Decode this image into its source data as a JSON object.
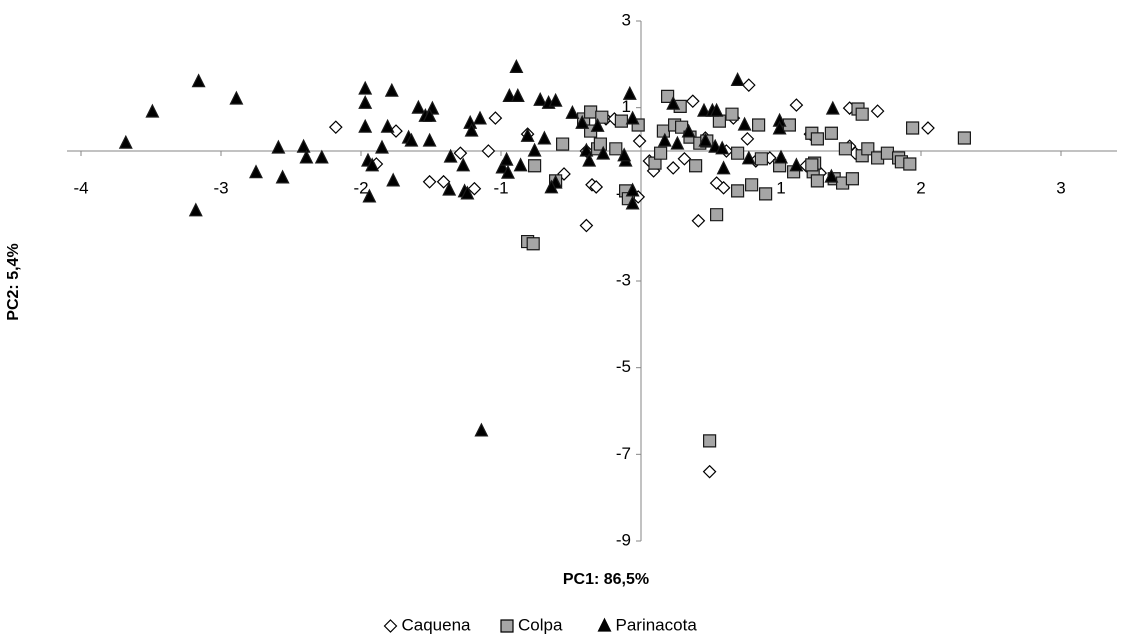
{
  "chart_data": {
    "type": "scatter",
    "xlabel": "PC1: 86,5%",
    "ylabel": "PC2: 5,4%",
    "xlim": [
      -4.1,
      3.4
    ],
    "ylim": [
      -9,
      3
    ],
    "xticks": [
      -4,
      -3,
      -2,
      -1,
      1,
      2,
      3
    ],
    "yticks": [
      3,
      1,
      -1,
      -3,
      -5,
      -7,
      -9
    ],
    "legend": "bottom",
    "series": [
      {
        "name": "Caquena",
        "marker": "diamond",
        "color": "#ffffff",
        "x": [
          -2.18,
          -1.89,
          -1.75,
          -1.51,
          -1.41,
          -1.29,
          -1.19,
          -1.09,
          -1.04,
          -0.81,
          -0.55,
          -0.39,
          -0.35,
          -0.32,
          -0.39,
          -0.25,
          -0.19,
          -0.02,
          0.06,
          0.09,
          0.23,
          0.31,
          0.37,
          0.41,
          0.46,
          0.49,
          0.54,
          0.59,
          0.61,
          0.66,
          0.77,
          0.76,
          0.82,
          0.92,
          1.11,
          1.18,
          1.21,
          1.49,
          1.49,
          1.53,
          2.05,
          1.69,
          1.28,
          -0.01
        ],
        "values": [
          0.55,
          -0.3,
          0.46,
          -0.71,
          -0.71,
          -0.05,
          -0.87,
          0,
          0.76,
          0.39,
          -0.53,
          -1.72,
          -0.78,
          -0.83,
          0,
          0.74,
          0.74,
          -1.06,
          -0.23,
          -0.46,
          -0.39,
          -0.18,
          1.15,
          -1.61,
          0.3,
          -7.4,
          -0.74,
          -0.85,
          0,
          0.76,
          1.52,
          0.28,
          -0.23,
          -0.16,
          1.06,
          -0.34,
          0.39,
          0.11,
          0.99,
          -0.05,
          0.53,
          0.92,
          -0.51,
          0.23
        ]
      },
      {
        "name": "Colpa",
        "marker": "square",
        "color": "#a6a6a6",
        "x": [
          -0.81,
          -0.77,
          -0.76,
          -0.61,
          -0.56,
          -0.41,
          -0.36,
          -0.36,
          -0.31,
          -0.29,
          -0.28,
          -0.14,
          -0.11,
          -0.09,
          -0.02,
          0.1,
          0.16,
          0.19,
          0.24,
          0.28,
          0.29,
          0.35,
          0.39,
          0.42,
          0.47,
          0.49,
          0.54,
          0.56,
          0.65,
          0.69,
          0.69,
          0.79,
          0.89,
          0.86,
          0.84,
          0.99,
          1.06,
          1.09,
          1.23,
          1.24,
          1.26,
          1.22,
          1.26,
          1.36,
          1.38,
          1.44,
          1.46,
          1.51,
          1.55,
          1.58,
          1.58,
          1.62,
          1.69,
          1.76,
          1.84,
          1.86,
          1.94,
          1.92,
          2.31,
          1.22,
          0.14,
          -0.18
        ],
        "values": [
          -2.09,
          -2.14,
          -0.34,
          -0.69,
          0.16,
          0.74,
          0.9,
          0.46,
          0.05,
          0.16,
          0.78,
          0.69,
          -0.92,
          -1.1,
          0.6,
          -0.28,
          0.46,
          1.26,
          0.6,
          1.03,
          0.55,
          0.32,
          -0.34,
          0.18,
          0.23,
          -6.69,
          -1.47,
          0.69,
          0.85,
          -0.05,
          -0.92,
          -0.78,
          -0.99,
          -0.18,
          0.6,
          -0.34,
          0.6,
          -0.48,
          -0.48,
          -0.28,
          -0.69,
          0.41,
          0.28,
          0.41,
          -0.64,
          -0.74,
          0.05,
          -0.64,
          0.97,
          0.85,
          -0.11,
          0.05,
          -0.16,
          -0.05,
          -0.16,
          -0.25,
          0.53,
          -0.3,
          0.3,
          -0.32,
          -0.05,
          0.05
        ]
      },
      {
        "name": "Parinacota",
        "marker": "triangle",
        "color": "#000000",
        "x": [
          -3.68,
          -3.49,
          -3.16,
          -2.89,
          -3.18,
          -2.75,
          -2.59,
          -2.56,
          -2.41,
          -2.39,
          -2.28,
          -1.97,
          -1.97,
          -1.97,
          -1.95,
          -1.92,
          -1.94,
          -1.85,
          -1.81,
          -1.78,
          -1.77,
          -1.66,
          -1.64,
          -1.59,
          -1.54,
          -1.49,
          -1.51,
          -1.51,
          -1.36,
          -1.37,
          -1.27,
          -1.26,
          -1.24,
          -1.22,
          -1.21,
          -1.15,
          -0.99,
          -0.96,
          -0.95,
          -0.94,
          -0.89,
          -0.88,
          -0.86,
          -0.81,
          -0.76,
          -0.72,
          -0.69,
          -0.66,
          -0.61,
          -0.49,
          -0.61,
          -0.64,
          -0.42,
          -0.39,
          -0.37,
          -0.31,
          -0.27,
          -0.11,
          -0.08,
          -0.06,
          -0.06,
          -0.06,
          -0.12,
          0.17,
          0.23,
          0.26,
          0.34,
          0.45,
          0.46,
          0.51,
          0.54,
          0.53,
          0.58,
          0.69,
          0.74,
          0.77,
          0.99,
          0.99,
          1.0,
          1.11,
          1.36,
          1.37,
          -1.14,
          0.59
        ],
        "values": [
          0.18,
          0.9,
          1.6,
          1.2,
          -1.38,
          -0.5,
          0.07,
          -0.62,
          0.09,
          -0.16,
          -0.16,
          1.43,
          1.1,
          0.55,
          -0.23,
          -0.34,
          -1.06,
          0.07,
          0.55,
          1.38,
          -0.69,
          0.3,
          0.23,
          0.99,
          0.8,
          0.97,
          0.23,
          0.8,
          -0.14,
          -0.9,
          -0.34,
          -0.94,
          -0.99,
          0.64,
          0.46,
          0.74,
          -0.39,
          -0.21,
          -0.51,
          1.26,
          1.93,
          1.26,
          -0.34,
          0.34,
          0,
          1.17,
          0.28,
          1.1,
          1.15,
          0.87,
          -0.74,
          -0.85,
          0.64,
          0,
          -0.23,
          0.57,
          -0.07,
          -0.23,
          1.31,
          0.74,
          -1.22,
          -0.92,
          -0.11,
          0.23,
          1.08,
          0.16,
          0.44,
          0.92,
          0.23,
          0.92,
          0.92,
          0.09,
          0.05,
          1.63,
          0.6,
          -0.18,
          0.69,
          0.51,
          -0.16,
          -0.34,
          -0.6,
          0.97,
          -6.46,
          -0.41
        ]
      }
    ]
  }
}
